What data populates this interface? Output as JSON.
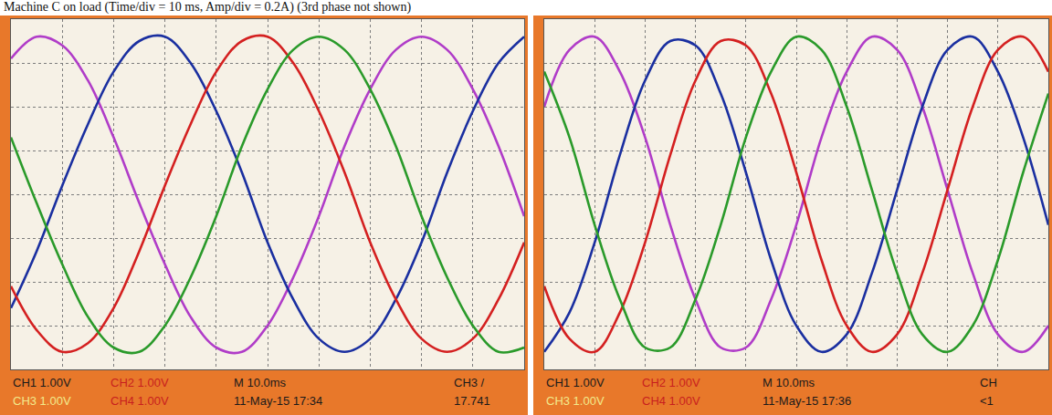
{
  "title": "Machine C on load (Time/div = 10 ms, Amp/div = 0.2A) (3rd phase not shown)",
  "chart_data": [
    {
      "type": "line",
      "x": [
        0,
        5,
        10,
        15,
        20,
        25,
        30,
        35,
        40,
        45,
        50,
        55,
        60,
        65,
        70,
        75,
        80,
        85,
        90,
        95,
        100
      ],
      "xlim": [
        0,
        100
      ],
      "ylim": [
        -4,
        4
      ],
      "xticks": [
        0,
        10,
        20,
        30,
        40,
        50,
        60,
        70,
        80,
        90,
        100
      ],
      "yticks": [
        -4,
        -3,
        -2,
        -1,
        0,
        1,
        2,
        3,
        4
      ],
      "grid": true,
      "tick_labels": false,
      "series": [
        {
          "color": "#b03cc8",
          "values": [
            3.1,
            3.6,
            3.4,
            2.6,
            1.3,
            -0.2,
            -1.6,
            -2.8,
            -3.5,
            -3.6,
            -3.0,
            -1.9,
            -0.5,
            1.1,
            2.4,
            3.3,
            3.6,
            3.3,
            2.4,
            1.1,
            -0.5
          ]
        },
        {
          "color": "#1a2fa0",
          "values": [
            -2.6,
            -1.3,
            0.2,
            1.6,
            2.8,
            3.5,
            3.6,
            3.0,
            1.9,
            0.5,
            -1.1,
            -2.4,
            -3.3,
            -3.6,
            -3.3,
            -2.4,
            -1.1,
            0.5,
            1.9,
            3.0,
            3.6
          ]
        },
        {
          "color": "#d42020",
          "values": [
            -2.1,
            -3.1,
            -3.6,
            -3.4,
            -2.6,
            -1.3,
            0.2,
            1.6,
            2.8,
            3.5,
            3.6,
            3.0,
            1.9,
            0.5,
            -1.1,
            -2.4,
            -3.3,
            -3.6,
            -3.3,
            -2.4,
            -1.1
          ]
        },
        {
          "color": "#2a9a2a",
          "values": [
            1.3,
            -0.2,
            -1.6,
            -2.8,
            -3.5,
            -3.6,
            -3.0,
            -1.9,
            -0.5,
            1.1,
            2.4,
            3.3,
            3.6,
            3.3,
            2.4,
            1.1,
            -0.5,
            -1.9,
            -3.0,
            -3.6,
            -3.5
          ]
        }
      ],
      "annotations": [
        "CH1 1.00V",
        "CH2 1.00V",
        "M 10.0ms",
        "CH3 /",
        "CH3 1.00V",
        "CH4 1.00V",
        "11-May-15 17:34",
        "17.741"
      ]
    },
    {
      "type": "line",
      "x": [
        0,
        5,
        10,
        15,
        20,
        25,
        30,
        35,
        40,
        45,
        50,
        55,
        60,
        65,
        70,
        75,
        80,
        85,
        90,
        95,
        100
      ],
      "xlim": [
        0,
        100
      ],
      "ylim": [
        -4,
        4
      ],
      "xticks": [
        0,
        10,
        20,
        30,
        40,
        50,
        60,
        70,
        80,
        90,
        100
      ],
      "yticks": [
        -4,
        -3,
        -2,
        -1,
        0,
        1,
        2,
        3,
        4
      ],
      "grid": true,
      "tick_labels": false,
      "series": [
        {
          "color": "#b03cc8",
          "values": [
            2.0,
            3.3,
            3.6,
            2.8,
            1.3,
            -0.7,
            -2.4,
            -3.5,
            -3.5,
            -2.4,
            -0.7,
            1.3,
            2.8,
            3.6,
            3.3,
            2.0,
            0.1,
            -1.8,
            -3.2,
            -3.6,
            -3.0
          ]
        },
        {
          "color": "#1a2fa0",
          "values": [
            -3.6,
            -2.7,
            -1.1,
            0.9,
            2.6,
            3.5,
            3.4,
            2.3,
            0.5,
            -1.5,
            -3.0,
            -3.6,
            -3.2,
            -1.8,
            0.1,
            2.0,
            3.3,
            3.6,
            2.8,
            1.3,
            -0.7
          ]
        },
        {
          "color": "#d42020",
          "values": [
            -2.1,
            -3.3,
            -3.6,
            -2.7,
            -1.1,
            0.9,
            2.6,
            3.5,
            3.4,
            2.3,
            0.5,
            -1.5,
            -3.0,
            -3.6,
            -3.2,
            -1.8,
            0.1,
            2.0,
            3.3,
            3.6,
            2.8
          ]
        },
        {
          "color": "#2a9a2a",
          "values": [
            2.8,
            1.3,
            -0.7,
            -2.4,
            -3.5,
            -3.5,
            -2.4,
            -0.7,
            1.3,
            2.8,
            3.6,
            3.3,
            2.0,
            0.1,
            -1.8,
            -3.2,
            -3.6,
            -3.0,
            -1.5,
            0.5,
            2.3
          ]
        }
      ],
      "annotations": [
        "CH1 1.00V",
        "CH2 1.00V",
        "M 10.0ms",
        "CH",
        "CH3 1.00V",
        "CH4 1.00V",
        "11-May-15 17:36",
        "<1"
      ]
    }
  ]
}
